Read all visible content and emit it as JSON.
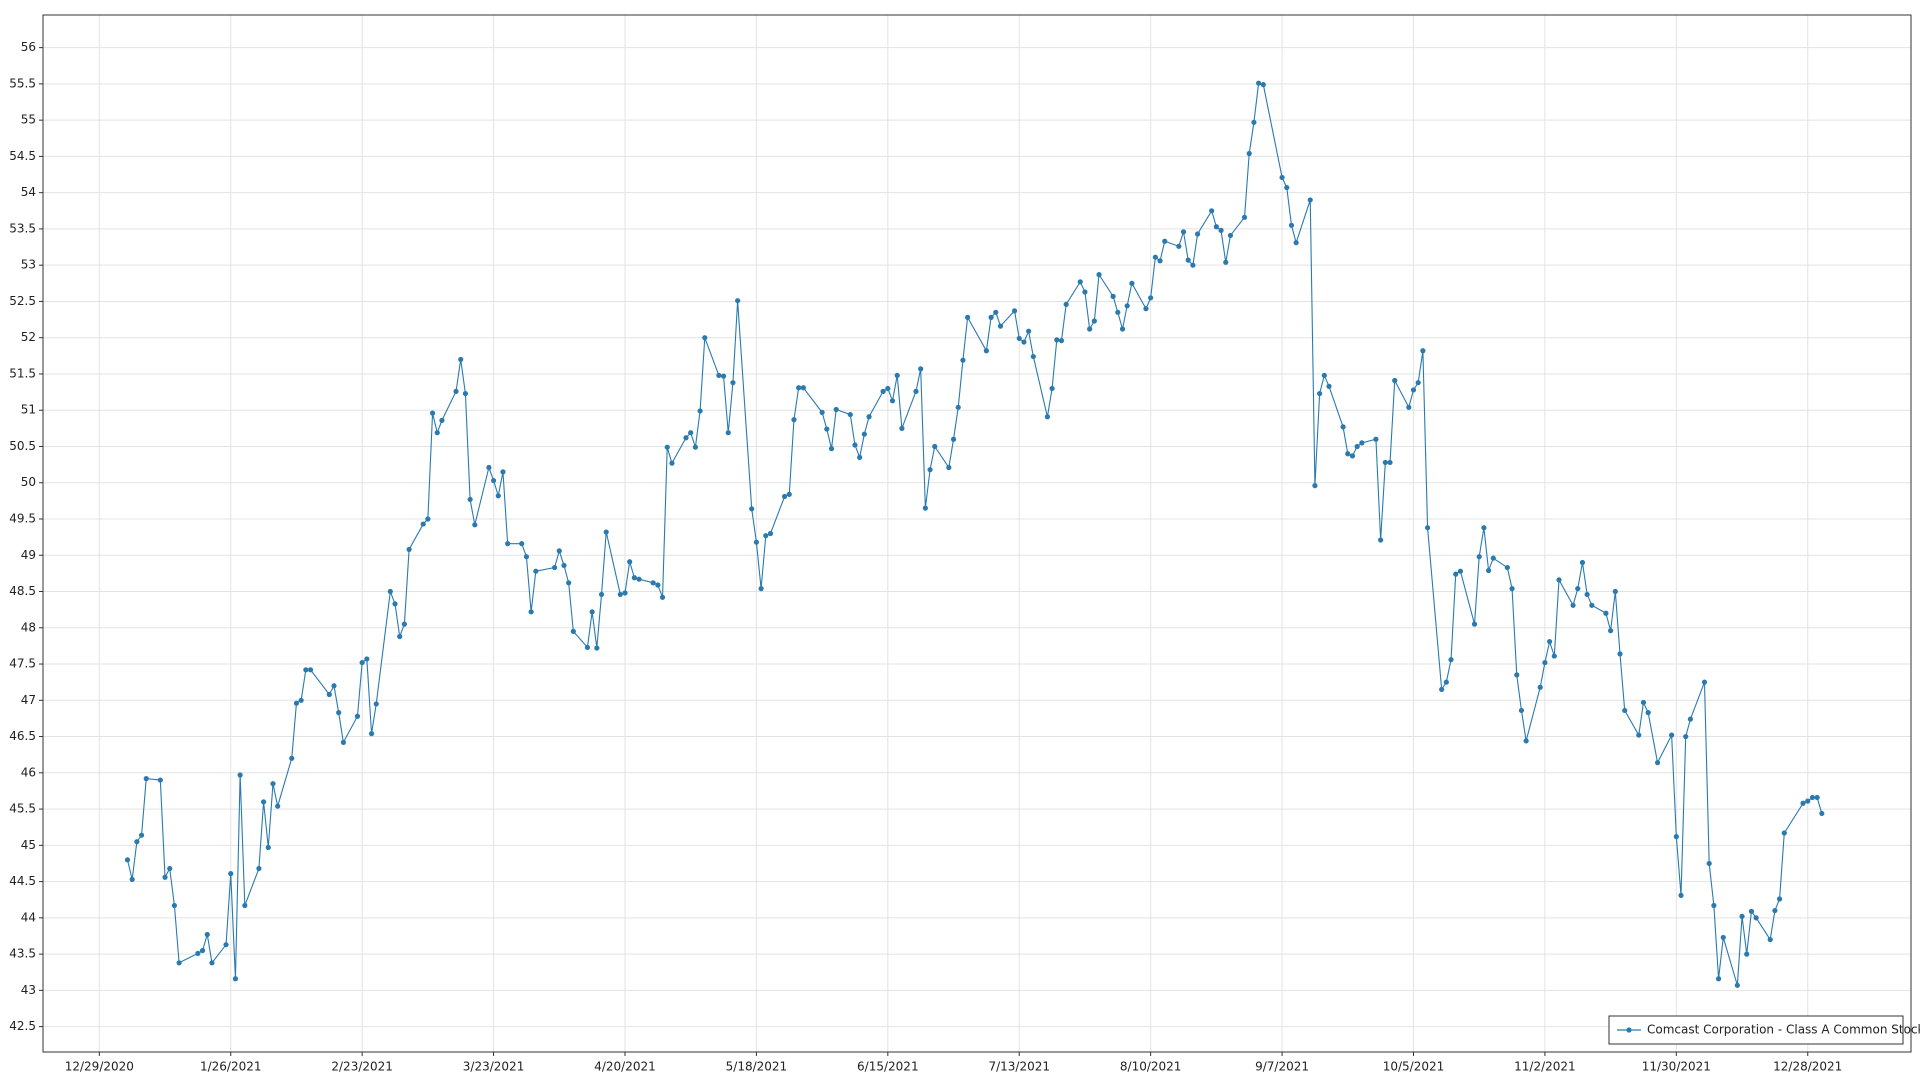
{
  "chart_data": {
    "type": "line",
    "x": [
      "1/4/2021",
      "1/5/2021",
      "1/6/2021",
      "1/7/2021",
      "1/8/2021",
      "1/11/2021",
      "1/12/2021",
      "1/13/2021",
      "1/14/2021",
      "1/15/2021",
      "1/19/2021",
      "1/20/2021",
      "1/21/2021",
      "1/22/2021",
      "1/25/2021",
      "1/26/2021",
      "1/27/2021",
      "1/28/2021",
      "1/29/2021",
      "2/1/2021",
      "2/2/2021",
      "2/3/2021",
      "2/4/2021",
      "2/5/2021",
      "2/8/2021",
      "2/9/2021",
      "2/10/2021",
      "2/11/2021",
      "2/12/2021",
      "2/16/2021",
      "2/17/2021",
      "2/18/2021",
      "2/19/2021",
      "2/22/2021",
      "2/23/2021",
      "2/24/2021",
      "2/25/2021",
      "2/26/2021",
      "3/1/2021",
      "3/2/2021",
      "3/3/2021",
      "3/4/2021",
      "3/5/2021",
      "3/8/2021",
      "3/9/2021",
      "3/10/2021",
      "3/11/2021",
      "3/12/2021",
      "3/15/2021",
      "3/16/2021",
      "3/17/2021",
      "3/18/2021",
      "3/19/2021",
      "3/22/2021",
      "3/23/2021",
      "3/24/2021",
      "3/25/2021",
      "3/26/2021",
      "3/29/2021",
      "3/30/2021",
      "3/31/2021",
      "4/1/2021",
      "4/5/2021",
      "4/6/2021",
      "4/7/2021",
      "4/8/2021",
      "4/9/2021",
      "4/12/2021",
      "4/13/2021",
      "4/14/2021",
      "4/15/2021",
      "4/16/2021",
      "4/19/2021",
      "4/20/2021",
      "4/21/2021",
      "4/22/2021",
      "4/23/2021",
      "4/26/2021",
      "4/27/2021",
      "4/28/2021",
      "4/29/2021",
      "4/30/2021",
      "5/3/2021",
      "5/4/2021",
      "5/5/2021",
      "5/6/2021",
      "5/7/2021",
      "5/10/2021",
      "5/11/2021",
      "5/12/2021",
      "5/13/2021",
      "5/14/2021",
      "5/17/2021",
      "5/18/2021",
      "5/19/2021",
      "5/20/2021",
      "5/21/2021",
      "5/24/2021",
      "5/25/2021",
      "5/26/2021",
      "5/27/2021",
      "5/28/2021",
      "6/1/2021",
      "6/2/2021",
      "6/3/2021",
      "6/4/2021",
      "6/7/2021",
      "6/8/2021",
      "6/9/2021",
      "6/10/2021",
      "6/11/2021",
      "6/14/2021",
      "6/15/2021",
      "6/16/2021",
      "6/17/2021",
      "6/18/2021",
      "6/21/2021",
      "6/22/2021",
      "6/23/2021",
      "6/24/2021",
      "6/25/2021",
      "6/28/2021",
      "6/29/2021",
      "6/30/2021",
      "7/1/2021",
      "7/2/2021",
      "7/6/2021",
      "7/7/2021",
      "7/8/2021",
      "7/9/2021",
      "7/12/2021",
      "7/13/2021",
      "7/14/2021",
      "7/15/2021",
      "7/16/2021",
      "7/19/2021",
      "7/20/2021",
      "7/21/2021",
      "7/22/2021",
      "7/23/2021",
      "7/26/2021",
      "7/27/2021",
      "7/28/2021",
      "7/29/2021",
      "7/30/2021",
      "8/2/2021",
      "8/3/2021",
      "8/4/2021",
      "8/5/2021",
      "8/6/2021",
      "8/9/2021",
      "8/10/2021",
      "8/11/2021",
      "8/12/2021",
      "8/13/2021",
      "8/16/2021",
      "8/17/2021",
      "8/18/2021",
      "8/19/2021",
      "8/20/2021",
      "8/23/2021",
      "8/24/2021",
      "8/25/2021",
      "8/26/2021",
      "8/27/2021",
      "8/30/2021",
      "8/31/2021",
      "9/1/2021",
      "9/2/2021",
      "9/3/2021",
      "9/7/2021",
      "9/8/2021",
      "9/9/2021",
      "9/10/2021",
      "9/13/2021",
      "9/14/2021",
      "9/15/2021",
      "9/16/2021",
      "9/17/2021",
      "9/20/2021",
      "9/21/2021",
      "9/22/2021",
      "9/23/2021",
      "9/24/2021",
      "9/27/2021",
      "9/28/2021",
      "9/29/2021",
      "9/30/2021",
      "10/1/2021",
      "10/4/2021",
      "10/5/2021",
      "10/6/2021",
      "10/7/2021",
      "10/8/2021",
      "10/11/2021",
      "10/12/2021",
      "10/13/2021",
      "10/14/2021",
      "10/15/2021",
      "10/18/2021",
      "10/19/2021",
      "10/20/2021",
      "10/21/2021",
      "10/22/2021",
      "10/25/2021",
      "10/26/2021",
      "10/27/2021",
      "10/28/2021",
      "10/29/2021",
      "11/1/2021",
      "11/2/2021",
      "11/3/2021",
      "11/4/2021",
      "11/5/2021",
      "11/8/2021",
      "11/9/2021",
      "11/10/2021",
      "11/11/2021",
      "11/12/2021",
      "11/15/2021",
      "11/16/2021",
      "11/17/2021",
      "11/18/2021",
      "11/19/2021",
      "11/22/2021",
      "11/23/2021",
      "11/24/2021",
      "11/26/2021",
      "11/29/2021",
      "11/30/2021",
      "12/1/2021",
      "12/2/2021",
      "12/3/2021",
      "12/6/2021",
      "12/7/2021",
      "12/8/2021",
      "12/9/2021",
      "12/10/2021",
      "12/13/2021",
      "12/14/2021",
      "12/15/2021",
      "12/16/2021",
      "12/17/2021",
      "12/20/2021",
      "12/21/2021",
      "12/22/2021",
      "12/23/2021",
      "12/27/2021",
      "12/28/2021",
      "12/29/2021",
      "12/30/2021",
      "12/31/2021"
    ],
    "series": [
      {
        "name": "Comcast Corporation - Class A Common Stock",
        "color": "#2a7ab0",
        "values": [
          44.8,
          44.53,
          45.05,
          45.14,
          45.92,
          45.9,
          44.56,
          44.68,
          44.17,
          43.38,
          43.51,
          43.55,
          43.77,
          43.38,
          43.63,
          44.61,
          43.16,
          45.97,
          44.17,
          44.68,
          45.6,
          44.97,
          45.85,
          45.54,
          46.2,
          46.96,
          47.0,
          47.42,
          47.42,
          47.08,
          47.2,
          46.83,
          46.42,
          46.78,
          47.52,
          47.57,
          46.54,
          46.95,
          48.5,
          48.33,
          47.88,
          48.05,
          49.08,
          49.43,
          49.5,
          50.96,
          50.69,
          50.86,
          51.26,
          51.7,
          51.23,
          49.77,
          49.42,
          50.21,
          50.03,
          49.82,
          50.15,
          49.16,
          49.16,
          48.98,
          48.22,
          48.78,
          48.83,
          49.06,
          48.86,
          48.62,
          47.95,
          47.73,
          48.22,
          47.72,
          48.46,
          49.32,
          48.46,
          48.48,
          48.91,
          48.69,
          48.67,
          48.62,
          48.59,
          48.42,
          50.49,
          50.27,
          50.62,
          50.69,
          50.49,
          50.99,
          52.0,
          51.48,
          51.47,
          50.69,
          51.38,
          52.51,
          49.64,
          49.18,
          48.54,
          49.27,
          49.3,
          49.81,
          49.84,
          50.87,
          51.31,
          51.31,
          50.97,
          50.74,
          50.47,
          51.01,
          50.94,
          50.52,
          50.35,
          50.67,
          50.91,
          51.26,
          51.3,
          51.13,
          51.48,
          50.75,
          51.26,
          51.57,
          49.65,
          50.18,
          50.5,
          50.21,
          50.6,
          51.04,
          51.69,
          52.28,
          51.82,
          52.28,
          52.35,
          52.16,
          52.37,
          51.99,
          51.94,
          52.09,
          51.74,
          50.91,
          51.3,
          51.97,
          51.96,
          52.46,
          52.77,
          52.63,
          52.12,
          52.23,
          52.87,
          52.57,
          52.35,
          52.12,
          52.44,
          52.75,
          52.4,
          52.55,
          53.11,
          53.06,
          53.33,
          53.26,
          53.46,
          53.07,
          53.0,
          53.43,
          53.75,
          53.53,
          53.48,
          53.04,
          53.41,
          53.66,
          54.54,
          54.97,
          55.51,
          55.49,
          54.21,
          54.07,
          53.55,
          53.31,
          53.9,
          49.96,
          51.23,
          51.48,
          51.33,
          50.77,
          50.4,
          50.37,
          50.5,
          50.55,
          50.6,
          49.21,
          50.28,
          50.28,
          51.41,
          51.04,
          51.28,
          51.38,
          51.82,
          49.38,
          47.15,
          47.25,
          47.56,
          48.74,
          48.78,
          48.05,
          48.98,
          49.38,
          48.79,
          48.96,
          48.83,
          48.54,
          47.35,
          46.86,
          46.44,
          47.18,
          47.52,
          47.81,
          47.61,
          48.66,
          48.31,
          48.54,
          48.9,
          48.46,
          48.31,
          48.2,
          47.96,
          48.5,
          47.64,
          46.86,
          46.52,
          46.97,
          46.83,
          46.14,
          46.52,
          45.12,
          44.31,
          46.5,
          46.74,
          47.25,
          44.75,
          44.17,
          43.16,
          43.73,
          43.07,
          44.02,
          43.5,
          44.09,
          44.0,
          43.7,
          44.1,
          44.26,
          45.17,
          45.58,
          45.61,
          45.66,
          45.66,
          45.44
        ]
      }
    ],
    "xlim": [
      "12/17/2020",
      "1/19/2022"
    ],
    "xticks": [
      "12/29/2020",
      "1/26/2021",
      "2/23/2021",
      "3/23/2021",
      "4/20/2021",
      "5/18/2021",
      "6/15/2021",
      "7/13/2021",
      "8/10/2021",
      "9/7/2021",
      "10/5/2021",
      "11/2/2021",
      "11/30/2021",
      "12/28/2021"
    ],
    "ylim": [
      42.15,
      56.45
    ],
    "yticks": [
      42.5,
      43,
      43.5,
      44,
      44.5,
      45,
      45.5,
      46,
      46.5,
      47,
      47.5,
      48,
      48.5,
      49,
      49.5,
      50,
      50.5,
      51,
      51.5,
      52,
      52.5,
      53,
      53.5,
      54,
      54.5,
      55,
      55.5,
      56
    ],
    "grid": true,
    "legend": "lower right"
  }
}
